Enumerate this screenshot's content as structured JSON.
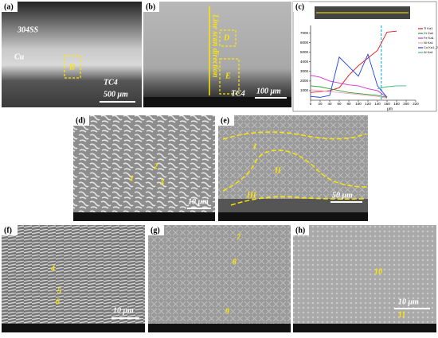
{
  "panels": {
    "a": {
      "label": "(a)",
      "texts": [
        "304SS",
        "Cu",
        "B",
        "TC4"
      ],
      "scale": "500 μm"
    },
    "b": {
      "label": "(b)",
      "texts": [
        "D",
        "E",
        "Line scan direction",
        "TC4"
      ],
      "scale": "100 μm"
    },
    "c": {
      "label": "(c)"
    },
    "d": {
      "label": "(d)",
      "texts": [
        "1",
        "2",
        "3"
      ],
      "scale": "10 μm"
    },
    "e": {
      "label": "(e)",
      "texts": [
        "I",
        "II",
        "III"
      ],
      "scale": "50 μm"
    },
    "f": {
      "label": "(f)",
      "texts": [
        "4",
        "5",
        "6"
      ],
      "scale": "10 μm"
    },
    "g": {
      "label": "(g)",
      "texts": [
        "7",
        "8",
        "9"
      ]
    },
    "h": {
      "label": "(h)",
      "texts": [
        "10",
        "11"
      ],
      "scale": "10 μm"
    }
  },
  "chart_data": {
    "type": "line",
    "x_label": "μm",
    "x": [
      0,
      20,
      40,
      60,
      80,
      100,
      120,
      140,
      160,
      180,
      200
    ],
    "xlim": [
      0,
      220
    ],
    "xticks": [
      0,
      20,
      40,
      60,
      80,
      100,
      120,
      140,
      160,
      180,
      200,
      220
    ],
    "ylim": [
      0,
      7800
    ],
    "yticks": [
      1000,
      2000,
      3000,
      4000,
      5000,
      6000,
      7000
    ],
    "series": [
      {
        "name": "Ti Ka1",
        "color": "#e8161b",
        "values": [
          800,
          900,
          1000,
          1300,
          2600,
          3600,
          4400,
          5200,
          7100,
          7200,
          null
        ]
      },
      {
        "name": "Cr Ka1",
        "color": "#2ca02c",
        "values": [
          1500,
          1400,
          1200,
          1000,
          800,
          700,
          600,
          500,
          300,
          null,
          null
        ]
      },
      {
        "name": "Fe Ka1",
        "color": "#d62fd0",
        "values": [
          2600,
          2400,
          2000,
          1800,
          1600,
          1500,
          1200,
          1000,
          300,
          null,
          null
        ]
      },
      {
        "name": "Ni Ka1",
        "color": "#f0a0c0",
        "values": [
          1100,
          1000,
          900,
          800,
          700,
          600,
          500,
          400,
          200,
          null,
          null
        ]
      },
      {
        "name": "Cu Ka1_2",
        "color": "#1f3fe0",
        "values": [
          400,
          300,
          500,
          4500,
          3500,
          2500,
          4800,
          1500,
          300,
          null,
          null
        ]
      },
      {
        "name": "Al Ka1",
        "color": "#3cb878",
        "values": [
          null,
          null,
          null,
          null,
          null,
          null,
          null,
          1200,
          1400,
          1500,
          1500
        ]
      }
    ]
  }
}
